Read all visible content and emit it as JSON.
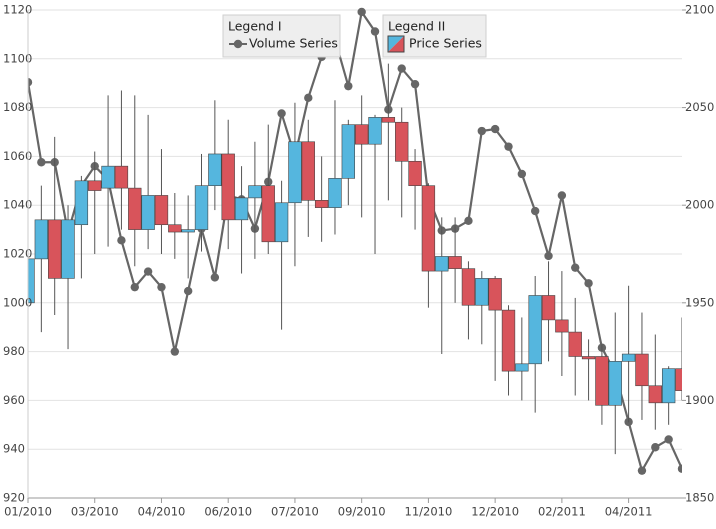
{
  "chart_data": {
    "type": "candlestick",
    "legend_titles": [
      "Legend I",
      "Legend II"
    ],
    "categories": [
      "01/2010",
      null,
      null,
      null,
      null,
      "03/2010",
      null,
      null,
      null,
      null,
      "04/2010",
      null,
      null,
      null,
      null,
      "06/2010",
      null,
      null,
      null,
      null,
      "07/2010",
      null,
      null,
      null,
      null,
      "09/2010",
      null,
      null,
      null,
      null,
      "11/2010",
      null,
      null,
      null,
      null,
      "12/2010",
      null,
      null,
      null,
      null,
      "02/2011",
      null,
      null,
      null,
      null,
      "04/2011",
      null,
      null,
      null,
      null
    ],
    "ylim": [
      920,
      1120
    ],
    "yticks": [
      920,
      940,
      960,
      980,
      1000,
      1020,
      1040,
      1060,
      1080,
      1100,
      1120
    ],
    "y2lim": [
      1850,
      2100
    ],
    "y2ticks": [
      1850,
      1900,
      1950,
      2000,
      2050,
      2100
    ],
    "grid": true,
    "series": [
      {
        "name": "Volume Series",
        "type": "line",
        "axis": "y2",
        "color": "#666666",
        "values": [
          2063,
          2022,
          2022,
          1986,
          2010,
          2020,
          2013,
          1982,
          1958,
          1966,
          1958,
          1925,
          1956,
          1988,
          1963,
          2005,
          2003,
          1988,
          2012,
          2047,
          2025,
          2055,
          2076,
          2085,
          2061,
          2099,
          2089,
          2049,
          2070,
          2062,
          2004,
          1987,
          1988,
          1992,
          2038,
          2039,
          2030,
          2016,
          1997,
          1974,
          2005,
          1968,
          1960,
          1927,
          1914,
          1889,
          1864,
          1876,
          1880,
          1865
        ]
      },
      {
        "name": "Price Series",
        "type": "candlestick",
        "up_color": "#55b6de",
        "down_color": "#d8545b",
        "open": [
          1000,
          1018,
          1034,
          1010,
          1032,
          1050,
          1047,
          1056,
          1047,
          1030,
          1044,
          1032,
          1029,
          1030,
          1048,
          1061,
          1034,
          1043,
          1048,
          1025,
          1041,
          1066,
          1042,
          1039,
          1051,
          1073,
          1065,
          1076,
          1074,
          1058,
          1048,
          1013,
          1019,
          1014,
          999,
          1010,
          997,
          972,
          975,
          1003,
          993,
          988,
          978,
          978,
          958,
          976,
          979,
          966,
          959,
          973
        ],
        "high": [
          1025,
          1048,
          1068,
          1040,
          1052,
          1062,
          1085,
          1087,
          1085,
          1077,
          1063,
          1045,
          1044,
          1061,
          1083,
          1075,
          1056,
          1066,
          1073,
          1050,
          1082,
          1075,
          1060,
          1083,
          1075,
          1085,
          1077,
          1098,
          1080,
          1063,
          1049,
          1035,
          1035,
          1017,
          1013,
          1011,
          999,
          994,
          1011,
          1017,
          1013,
          1002,
          985,
          983,
          996,
          1007,
          996,
          987,
          974,
          994
        ],
        "low": [
          985,
          988,
          995,
          981,
          1010,
          1020,
          1023,
          1030,
          1015,
          1022,
          1020,
          1018,
          1010,
          1021,
          1038,
          1022,
          1012,
          1018,
          1020,
          989,
          1015,
          1027,
          1025,
          1028,
          1040,
          1035,
          1020,
          1042,
          1035,
          1030,
          998,
          979,
          1000,
          985,
          983,
          968,
          962,
          960,
          955,
          976,
          970,
          962,
          960,
          950,
          938,
          951,
          952,
          948,
          950,
          960
        ],
        "close": [
          1018,
          1034,
          1010,
          1034,
          1050,
          1046,
          1056,
          1047,
          1030,
          1044,
          1032,
          1029,
          1030,
          1048,
          1061,
          1034,
          1043,
          1048,
          1025,
          1041,
          1066,
          1042,
          1039,
          1051,
          1073,
          1065,
          1076,
          1074,
          1058,
          1048,
          1013,
          1019,
          1014,
          999,
          1010,
          997,
          972,
          975,
          1003,
          993,
          988,
          978,
          977,
          958,
          976,
          979,
          966,
          959,
          973,
          964
        ]
      }
    ]
  }
}
